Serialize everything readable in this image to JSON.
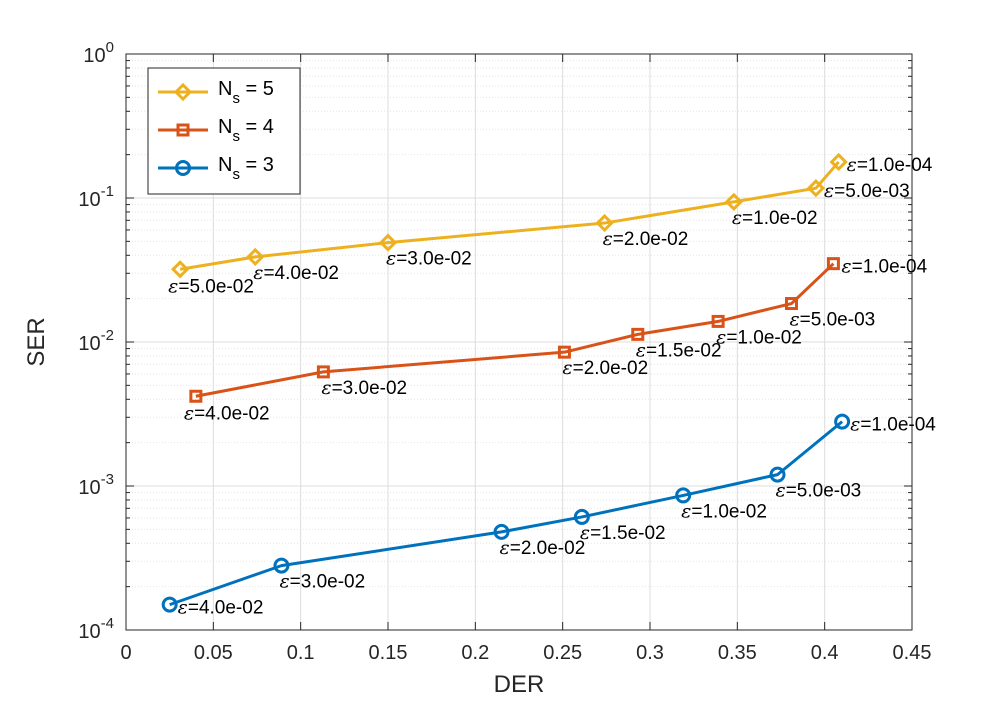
{
  "chart_data": {
    "type": "line",
    "xscale": "linear",
    "yscale": "log",
    "xlabel": "DER",
    "ylabel": "SER",
    "xlim": [
      0,
      0.45
    ],
    "ylim": [
      0.0001,
      1
    ],
    "grid": true,
    "minor_grid_y": true,
    "x_ticks": [
      "0",
      "0.05",
      "0.1",
      "0.15",
      "0.2",
      "0.25",
      "0.3",
      "0.35",
      "0.4",
      "0.45"
    ],
    "x_tick_values": [
      0,
      0.05,
      0.1,
      0.15,
      0.2,
      0.25,
      0.3,
      0.35,
      0.4,
      0.45
    ],
    "y_ticks": [
      {
        "value": 0.0001,
        "base": "10",
        "exp": "-4"
      },
      {
        "value": 0.001,
        "base": "10",
        "exp": "-3"
      },
      {
        "value": 0.01,
        "base": "10",
        "exp": "-2"
      },
      {
        "value": 0.1,
        "base": "10",
        "exp": "-1"
      },
      {
        "value": 1,
        "base": "10",
        "exp": "0"
      }
    ],
    "legend_position": "top-left",
    "series": [
      {
        "name": "N_s = 5",
        "legend_main": "N",
        "legend_sub": "s",
        "legend_rest": " = 5",
        "color": "#EDB120",
        "marker": "diamond",
        "points": [
          {
            "x": 0.031,
            "y": 0.032,
            "label": "=5.0e-02",
            "pos": "below"
          },
          {
            "x": 0.074,
            "y": 0.039,
            "label": "=4.0e-02",
            "pos": "below-right"
          },
          {
            "x": 0.15,
            "y": 0.049,
            "label": "=3.0e-02",
            "pos": "below-right"
          },
          {
            "x": 0.274,
            "y": 0.067,
            "label": "=2.0e-02",
            "pos": "below-right"
          },
          {
            "x": 0.348,
            "y": 0.094,
            "label": "=1.0e-02",
            "pos": "below-right"
          },
          {
            "x": 0.395,
            "y": 0.117,
            "label": "=5.0e-03",
            "pos": "right"
          },
          {
            "x": 0.408,
            "y": 0.178,
            "label": "=1.0e-04",
            "pos": "right"
          }
        ]
      },
      {
        "name": "N_s = 4",
        "legend_main": "N",
        "legend_sub": "s",
        "legend_rest": " = 4",
        "color": "#D95319",
        "marker": "square",
        "points": [
          {
            "x": 0.04,
            "y": 0.0042,
            "label": "=4.0e-02",
            "pos": "below"
          },
          {
            "x": 0.113,
            "y": 0.0062,
            "label": "=3.0e-02",
            "pos": "below-right"
          },
          {
            "x": 0.251,
            "y": 0.0085,
            "label": "=2.0e-02",
            "pos": "below-right"
          },
          {
            "x": 0.293,
            "y": 0.0113,
            "label": "=1.5e-02",
            "pos": "below-right"
          },
          {
            "x": 0.339,
            "y": 0.0139,
            "label": "=1.0e-02",
            "pos": "below-right"
          },
          {
            "x": 0.381,
            "y": 0.0185,
            "label": "=5.0e-03",
            "pos": "below-right"
          },
          {
            "x": 0.405,
            "y": 0.035,
            "label": "=1.0e-04",
            "pos": "right"
          }
        ]
      },
      {
        "name": "N_s = 3",
        "legend_main": "N",
        "legend_sub": "s",
        "legend_rest": " = 3",
        "color": "#0072BD",
        "marker": "circle",
        "points": [
          {
            "x": 0.025,
            "y": 0.00015,
            "label": "=4.0e-02",
            "pos": "right"
          },
          {
            "x": 0.089,
            "y": 0.00028,
            "label": "=3.0e-02",
            "pos": "below-right"
          },
          {
            "x": 0.215,
            "y": 0.00048,
            "label": "=2.0e-02",
            "pos": "below-right"
          },
          {
            "x": 0.261,
            "y": 0.00061,
            "label": "=1.5e-02",
            "pos": "below-right"
          },
          {
            "x": 0.319,
            "y": 0.00086,
            "label": "=1.0e-02",
            "pos": "below-right"
          },
          {
            "x": 0.373,
            "y": 0.0012,
            "label": "=5.0e-03",
            "pos": "below-right"
          },
          {
            "x": 0.41,
            "y": 0.0028,
            "label": "=1.0e-04",
            "pos": "right"
          }
        ]
      }
    ]
  }
}
